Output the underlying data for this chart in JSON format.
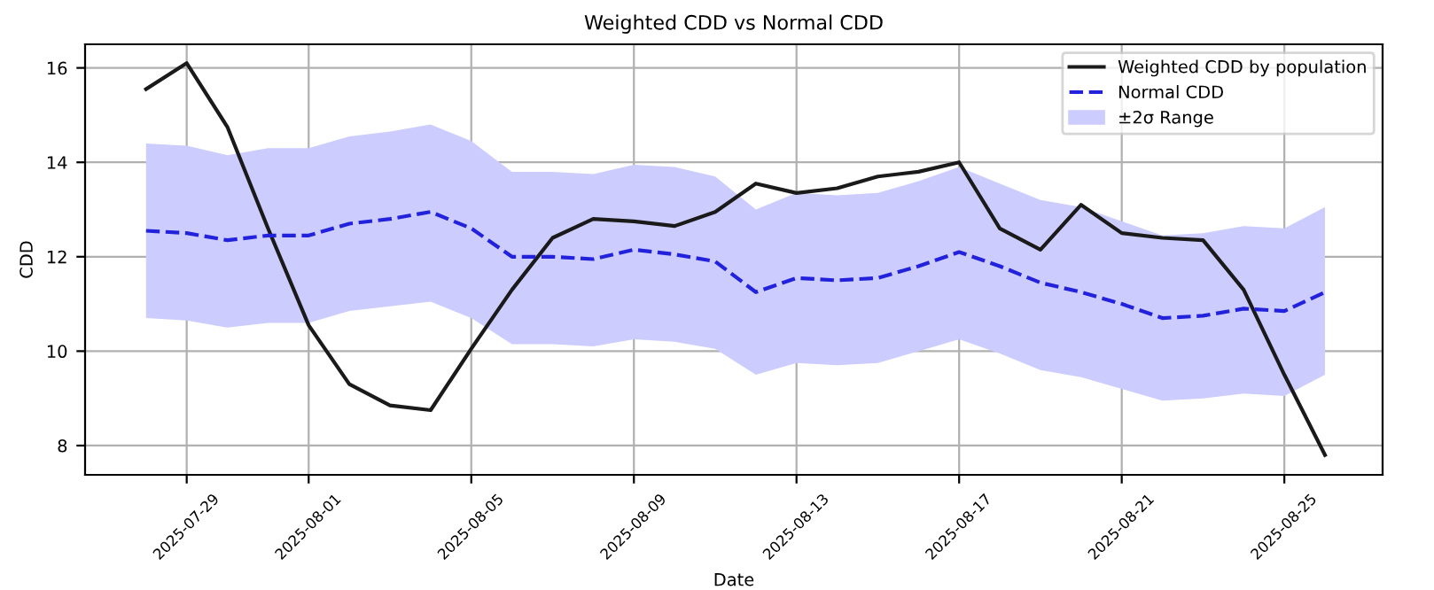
{
  "chart_data": {
    "type": "line",
    "title": "Weighted CDD vs Normal CDD",
    "xlabel": "Date",
    "ylabel": "CDD",
    "x": [
      "2025-07-28",
      "2025-07-29",
      "2025-07-30",
      "2025-07-31",
      "2025-08-01",
      "2025-08-02",
      "2025-08-03",
      "2025-08-04",
      "2025-08-05",
      "2025-08-06",
      "2025-08-07",
      "2025-08-08",
      "2025-08-09",
      "2025-08-10",
      "2025-08-11",
      "2025-08-12",
      "2025-08-13",
      "2025-08-14",
      "2025-08-15",
      "2025-08-16",
      "2025-08-17",
      "2025-08-18",
      "2025-08-19",
      "2025-08-20",
      "2025-08-21",
      "2025-08-22",
      "2025-08-23",
      "2025-08-24",
      "2025-08-25",
      "2025-08-26"
    ],
    "series": [
      {
        "name": "Weighted CDD by population",
        "type": "line",
        "color": "#1a1a1a",
        "line_style": "solid",
        "values": [
          15.55,
          16.1,
          14.75,
          12.6,
          10.55,
          9.3,
          8.85,
          8.75,
          10.05,
          11.3,
          12.4,
          12.8,
          12.75,
          12.65,
          12.95,
          13.55,
          13.35,
          13.45,
          13.7,
          13.8,
          14.0,
          12.6,
          12.15,
          13.1,
          12.5,
          12.4,
          12.35,
          11.3,
          9.5,
          7.8
        ]
      },
      {
        "name": "Normal CDD",
        "type": "line",
        "color": "#2222dd",
        "line_style": "dashed",
        "values": [
          12.55,
          12.5,
          12.35,
          12.45,
          12.45,
          12.7,
          12.8,
          12.95,
          12.6,
          12.0,
          12.0,
          11.95,
          12.15,
          12.05,
          11.9,
          11.25,
          11.55,
          11.5,
          11.55,
          11.8,
          12.1,
          11.8,
          11.45,
          11.25,
          11.0,
          10.7,
          10.75,
          10.9,
          10.85,
          11.25
        ],
        "lower": [
          10.7,
          10.65,
          10.5,
          10.6,
          10.6,
          10.85,
          10.95,
          11.05,
          10.7,
          10.15,
          10.15,
          10.1,
          10.25,
          10.2,
          10.05,
          9.5,
          9.75,
          9.7,
          9.75,
          10.0,
          10.25,
          9.95,
          9.6,
          9.45,
          9.2,
          8.95,
          9.0,
          9.1,
          9.05,
          9.5
        ],
        "upper": [
          14.4,
          14.35,
          14.15,
          14.3,
          14.3,
          14.55,
          14.65,
          14.8,
          14.45,
          13.8,
          13.8,
          13.75,
          13.95,
          13.9,
          13.7,
          13.0,
          13.35,
          13.3,
          13.35,
          13.6,
          13.9,
          13.55,
          13.2,
          13.05,
          12.75,
          12.45,
          12.5,
          12.65,
          12.6,
          13.05
        ]
      }
    ],
    "annotations": [
      "±2σ Range"
    ],
    "xlim": [
      "2025-07-26T12:00",
      "2025-08-27T10:00"
    ],
    "xticks": [
      "2025-07-29",
      "2025-08-01",
      "2025-08-05",
      "2025-08-09",
      "2025-08-13",
      "2025-08-17",
      "2025-08-21",
      "2025-08-25"
    ],
    "ylim": [
      7.38,
      16.5
    ],
    "yticks": [
      8,
      10,
      12,
      14,
      16
    ],
    "grid": true,
    "legend": "top right"
  }
}
